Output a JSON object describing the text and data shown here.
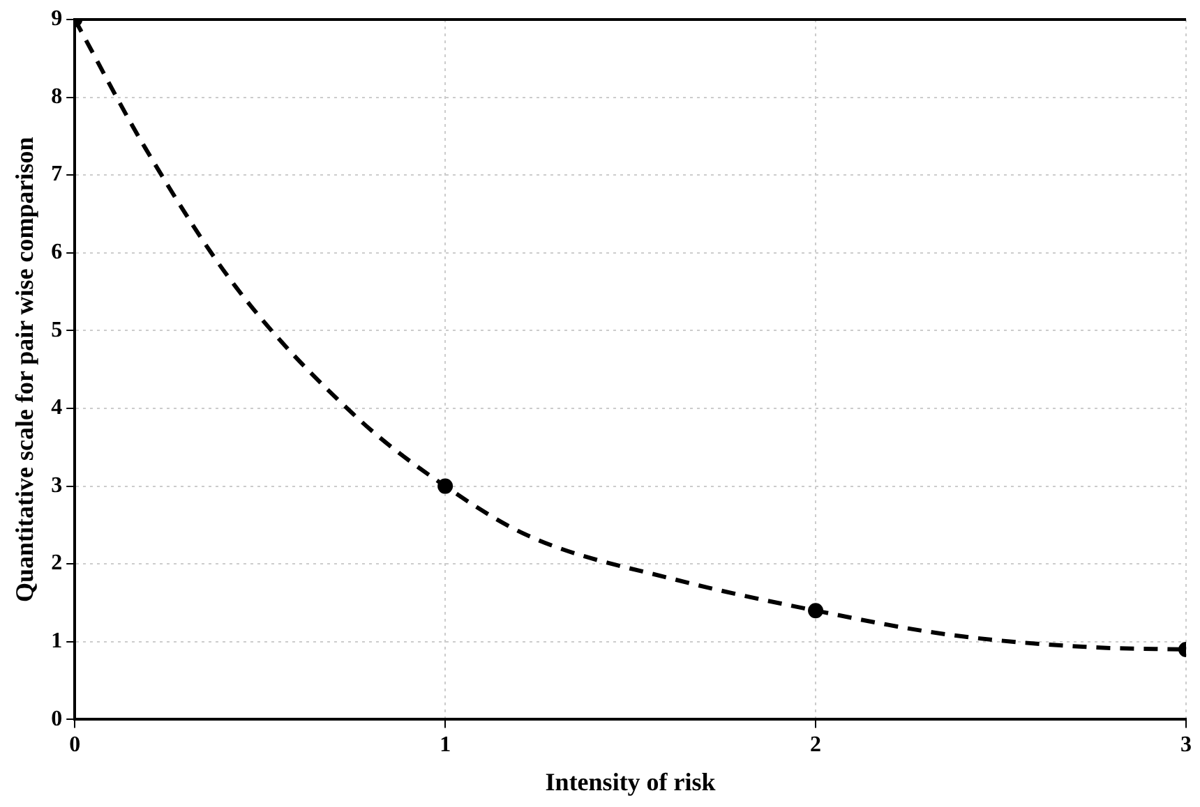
{
  "chart_data": {
    "type": "scatter",
    "xlabel": "Intensity of risk",
    "ylabel": "Quantitative scale for pair wise comparison",
    "xlim": [
      0,
      3
    ],
    "xticks": [
      0,
      1,
      2,
      3
    ],
    "ylim": [
      0,
      9
    ],
    "yticks": [
      0,
      1,
      2,
      3,
      4,
      5,
      6,
      7,
      8,
      9
    ],
    "grid": true,
    "legend": false,
    "series": [
      {
        "type": "line",
        "color": "#000000",
        "line_style": "dashed",
        "marker": "none",
        "x": [
          0,
          0.19,
          0.435,
          0.76,
          1,
          1.23,
          1.62,
          2,
          2.36,
          2.74,
          3
        ],
        "values": [
          9,
          7.35,
          5.56,
          3.89,
          3,
          2.35,
          1.8,
          1.4,
          1.09,
          0.93,
          0.9
        ]
      },
      {
        "color": "#000000",
        "marker": "circle",
        "x": [
          0,
          1,
          2,
          3
        ],
        "values": [
          9,
          3,
          1.4,
          0.9
        ]
      }
    ]
  }
}
